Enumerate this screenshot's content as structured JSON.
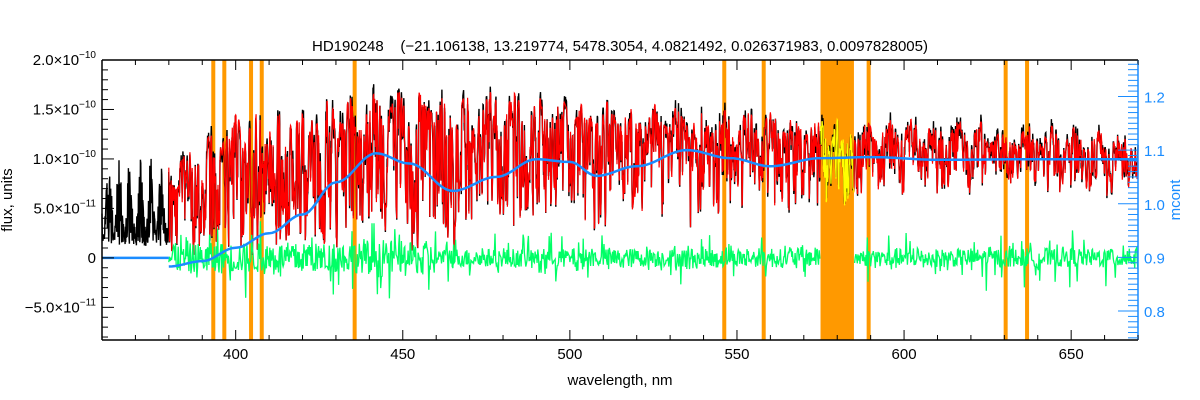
{
  "chart_data": {
    "type": "line",
    "title": "HD190248    (−21.106138, 13.219774, 5478.3054, 4.0821492, 0.026371983, 0.0097828005)",
    "xlabel": "wavelength, nm",
    "ylabel": "flux, units",
    "y2label": "mcont",
    "xlim": [
      360,
      670
    ],
    "ylim": [
      -8.3e-11,
      2e-10
    ],
    "y2lim": [
      0.746,
      1.268
    ],
    "x_ticks": [
      400,
      450,
      500,
      550,
      600,
      650
    ],
    "y_ticks": [
      {
        "value": 2e-10,
        "mant": "2.0×10",
        "exp": "−10"
      },
      {
        "value": 1.5e-10,
        "mant": "1.5×10",
        "exp": "−10"
      },
      {
        "value": 1e-10,
        "mant": "1.0×10",
        "exp": "−10"
      },
      {
        "value": 5e-11,
        "mant": "5.0×10",
        "exp": "−11"
      },
      {
        "value": 0,
        "mant": "0",
        "exp": ""
      },
      {
        "value": -5e-11,
        "mant": "−5.0×10",
        "exp": "−11"
      }
    ],
    "y2_ticks": [
      0.8,
      0.9,
      1.0,
      1.1,
      1.2
    ],
    "y2_tick_labels": [
      "0.8",
      "0.9",
      "1.0",
      "1.1",
      "1.2"
    ],
    "grid": false,
    "series": [
      {
        "name": "observed spectrum",
        "color": "#000000",
        "range": [
          360,
          670
        ],
        "envelope_1e-10": [
          [
            360,
            1.05
          ],
          [
            380,
            1.0
          ],
          [
            390,
            1.2
          ],
          [
            400,
            1.45
          ],
          [
            420,
            1.55
          ],
          [
            440,
            1.65
          ],
          [
            450,
            1.7
          ],
          [
            480,
            1.68
          ],
          [
            500,
            1.6
          ],
          [
            550,
            1.5
          ],
          [
            600,
            1.42
          ],
          [
            650,
            1.32
          ],
          [
            670,
            1.28
          ]
        ]
      },
      {
        "name": "model spectrum",
        "color": "#ff0000",
        "range": [
          380,
          670
        ]
      },
      {
        "name": "masked model region",
        "color": "#ffff00",
        "range": [
          575,
          585
        ]
      },
      {
        "name": "residuals",
        "color": "#00ff66",
        "range": [
          380,
          670
        ],
        "gap": [
          575,
          585
        ],
        "typical_amplitude": 1.5e-11
      },
      {
        "name": "mcont",
        "color": "#1a8cff",
        "axis": "right",
        "points": [
          [
            380,
            0.883
          ],
          [
            390,
            0.893
          ],
          [
            400,
            0.918
          ],
          [
            410,
            0.945
          ],
          [
            420,
            0.98
          ],
          [
            430,
            1.04
          ],
          [
            442,
            1.094
          ],
          [
            452,
            1.075
          ],
          [
            465,
            1.024
          ],
          [
            478,
            1.05
          ],
          [
            490,
            1.083
          ],
          [
            500,
            1.078
          ],
          [
            508,
            1.052
          ],
          [
            520,
            1.07
          ],
          [
            535,
            1.1
          ],
          [
            548,
            1.085
          ],
          [
            560,
            1.07
          ],
          [
            575,
            1.085
          ],
          [
            590,
            1.087
          ],
          [
            610,
            1.082
          ],
          [
            640,
            1.083
          ],
          [
            670,
            1.083
          ]
        ]
      },
      {
        "name": "zero flux baseline",
        "color": "#1a8cff",
        "range": [
          360,
          380
        ],
        "value": 0
      }
    ],
    "masked_lines_nm": [
      393.3,
      396.6,
      404.6,
      407.8,
      435.6,
      546.2,
      558.0,
      589.4,
      630.4,
      636.8
    ],
    "masked_band_nm": [
      575,
      585
    ],
    "mask_color": "#ff9900"
  }
}
